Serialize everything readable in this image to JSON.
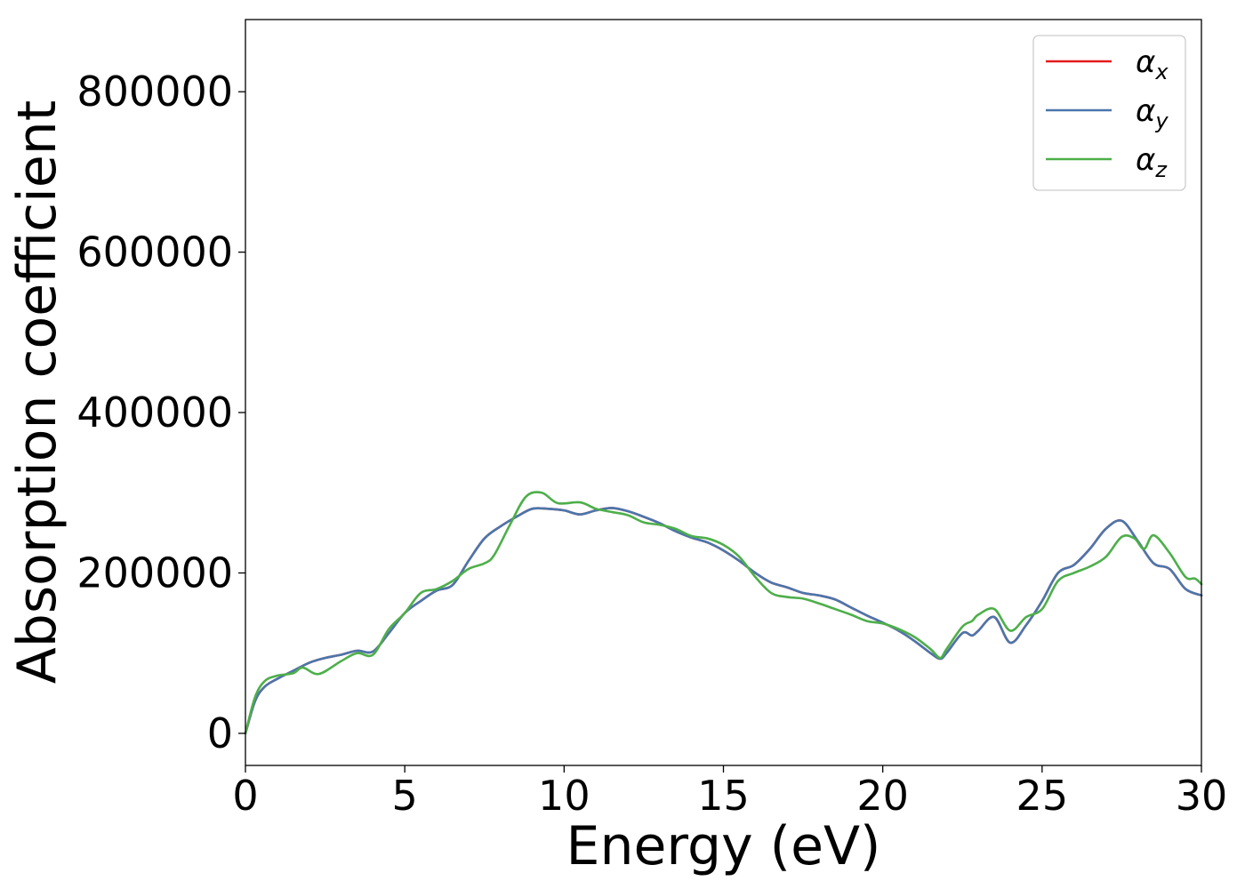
{
  "chart_data": {
    "type": "line",
    "xlabel": "Energy (eV)",
    "ylabel": "Absorption coefficient",
    "xlim": [
      0,
      30
    ],
    "ylim": [
      -40000,
      890000
    ],
    "xticks": [
      0,
      5,
      10,
      15,
      20,
      25,
      30
    ],
    "xtick_labels": [
      "0",
      "5",
      "10",
      "15",
      "20",
      "25",
      "30"
    ],
    "yticks": [
      0,
      200000,
      400000,
      600000,
      800000
    ],
    "ytick_labels": [
      "0",
      "200000",
      "400000",
      "600000",
      "800000"
    ],
    "grid": false,
    "legend_position": "top-right",
    "series": [
      {
        "name": "α",
        "subscript": "x",
        "color": "#e41a1c",
        "x": [
          0,
          0.3,
          0.6,
          1,
          1.5,
          2,
          2.5,
          3,
          3.5,
          4,
          4.5,
          5,
          5.5,
          6,
          6.5,
          7,
          7.5,
          8,
          8.5,
          9,
          9.5,
          10,
          10.5,
          11,
          11.5,
          12,
          12.5,
          13,
          13.5,
          14,
          14.5,
          15,
          15.5,
          16,
          16.5,
          17,
          17.5,
          18,
          18.5,
          19,
          19.5,
          20,
          20.5,
          21,
          21.5,
          21.8,
          22,
          22.5,
          22.8,
          23,
          23.5,
          24,
          24.5,
          25,
          25.5,
          26,
          26.5,
          27,
          27.5,
          28,
          28.5,
          29,
          29.5,
          30
        ],
        "values": [
          0,
          40000,
          58000,
          68000,
          78000,
          88000,
          94000,
          98000,
          103000,
          102000,
          125000,
          150000,
          165000,
          178000,
          185000,
          215000,
          243000,
          258000,
          270000,
          280000,
          280000,
          278000,
          273000,
          278000,
          281000,
          277000,
          270000,
          262000,
          252000,
          244000,
          238000,
          228000,
          215000,
          200000,
          188000,
          182000,
          175000,
          172000,
          167000,
          157000,
          147000,
          138000,
          128000,
          115000,
          100000,
          93000,
          100000,
          125000,
          122000,
          128000,
          145000,
          113000,
          135000,
          165000,
          200000,
          210000,
          230000,
          255000,
          265000,
          240000,
          212000,
          205000,
          180000,
          172000
        ]
      },
      {
        "name": "α",
        "subscript": "y",
        "color": "#4a76ac",
        "x": [
          0,
          0.3,
          0.6,
          1,
          1.5,
          2,
          2.5,
          3,
          3.5,
          4,
          4.5,
          5,
          5.5,
          6,
          6.5,
          7,
          7.5,
          8,
          8.5,
          9,
          9.5,
          10,
          10.5,
          11,
          11.5,
          12,
          12.5,
          13,
          13.5,
          14,
          14.5,
          15,
          15.5,
          16,
          16.5,
          17,
          17.5,
          18,
          18.5,
          19,
          19.5,
          20,
          20.5,
          21,
          21.5,
          21.8,
          22,
          22.5,
          22.8,
          23,
          23.5,
          24,
          24.5,
          25,
          25.5,
          26,
          26.5,
          27,
          27.5,
          28,
          28.5,
          29,
          29.5,
          30
        ],
        "values": [
          0,
          40000,
          58000,
          68000,
          78000,
          88000,
          94000,
          98000,
          103000,
          102000,
          125000,
          150000,
          165000,
          178000,
          185000,
          215000,
          243000,
          258000,
          270000,
          280000,
          280000,
          278000,
          273000,
          278000,
          281000,
          277000,
          270000,
          262000,
          252000,
          244000,
          238000,
          228000,
          215000,
          200000,
          188000,
          182000,
          175000,
          172000,
          167000,
          157000,
          147000,
          138000,
          128000,
          115000,
          100000,
          93000,
          100000,
          125000,
          122000,
          128000,
          145000,
          113000,
          135000,
          165000,
          200000,
          210000,
          230000,
          255000,
          265000,
          240000,
          212000,
          205000,
          180000,
          172000
        ]
      },
      {
        "name": "α",
        "subscript": "z",
        "color": "#4daf4a",
        "x": [
          0,
          0.3,
          0.6,
          1,
          1.5,
          1.8,
          2.3,
          3,
          3.5,
          4,
          4.5,
          5,
          5.5,
          6,
          6.5,
          7,
          7.5,
          7.8,
          8.3,
          8.8,
          9.3,
          9.8,
          10.5,
          11,
          11.5,
          12,
          12.5,
          13,
          13.5,
          14,
          14.5,
          15,
          15.5,
          16,
          16.5,
          17,
          17.5,
          18,
          18.5,
          19,
          19.5,
          20,
          20.5,
          21,
          21.5,
          21.8,
          22,
          22.5,
          22.8,
          23,
          23.5,
          24,
          24.5,
          25,
          25.5,
          26,
          26.5,
          27,
          27.5,
          27.9,
          28.2,
          28.5,
          29,
          29.5,
          29.8,
          30
        ],
        "values": [
          0,
          45000,
          65000,
          72000,
          75000,
          82000,
          74000,
          90000,
          100000,
          98000,
          130000,
          150000,
          175000,
          180000,
          190000,
          205000,
          212000,
          222000,
          260000,
          295000,
          300000,
          287000,
          288000,
          280000,
          276000,
          272000,
          263000,
          260000,
          255000,
          246000,
          243000,
          235000,
          220000,
          195000,
          175000,
          170000,
          168000,
          162000,
          155000,
          148000,
          140000,
          137000,
          130000,
          120000,
          105000,
          94000,
          105000,
          133000,
          140000,
          148000,
          155000,
          128000,
          145000,
          155000,
          190000,
          200000,
          208000,
          220000,
          245000,
          243000,
          230000,
          247000,
          225000,
          195000,
          193000,
          186000
        ]
      }
    ]
  }
}
